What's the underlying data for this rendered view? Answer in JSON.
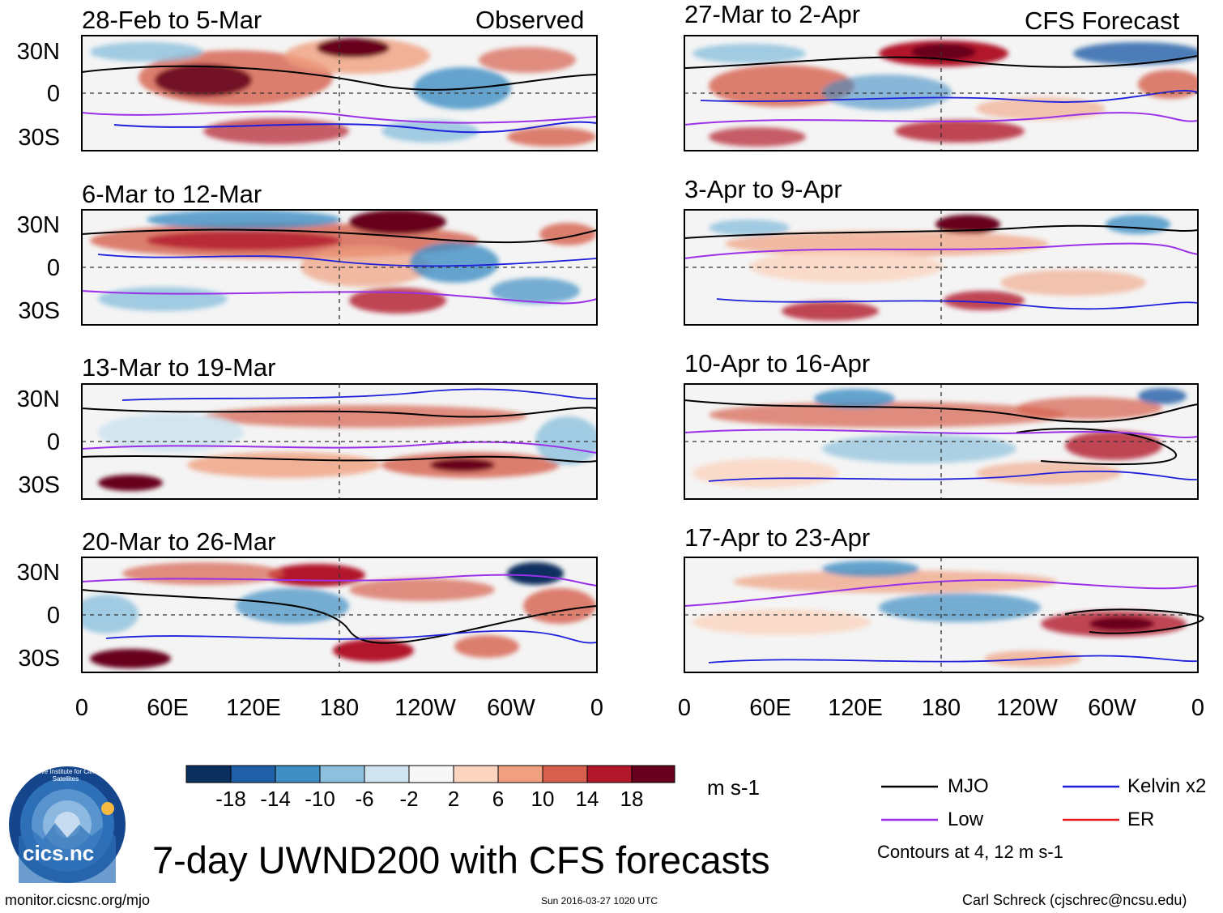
{
  "figure_title": "7-day UWND200 with CFS forecasts",
  "observed_label": "Observed",
  "forecast_label": "CFS Forecast",
  "observed_panels": [
    {
      "title": "28-Feb to 5-Mar"
    },
    {
      "title": "6-Mar to 12-Mar"
    },
    {
      "title": "13-Mar to 19-Mar"
    },
    {
      "title": "20-Mar to 26-Mar"
    }
  ],
  "forecast_panels": [
    {
      "title": "27-Mar to 2-Apr"
    },
    {
      "title": "3-Apr to 9-Apr"
    },
    {
      "title": "10-Apr to 16-Apr"
    },
    {
      "title": "17-Apr to 23-Apr"
    }
  ],
  "y_axis_labels": [
    "30N",
    "0",
    "30S"
  ],
  "x_axis_labels": [
    "0",
    "60E",
    "120E",
    "180",
    "120W",
    "60W",
    "0"
  ],
  "colorbar": {
    "unit": "m s-1",
    "ticks": [
      "-18",
      "-14",
      "-10",
      "-6",
      "-2",
      "2",
      "6",
      "10",
      "14",
      "18"
    ],
    "colors": [
      "#0b2f5e",
      "#1f5fa8",
      "#3f8ec4",
      "#8cc0dd",
      "#cfe4ef",
      "#f7f7f7",
      "#fbd5bf",
      "#f0a07f",
      "#d6604d",
      "#b2182b",
      "#67001f"
    ]
  },
  "legend": {
    "items": [
      {
        "label": "MJO",
        "color": "#000000"
      },
      {
        "label": "Kelvin x2",
        "color": "#1f1fdc"
      },
      {
        "label": "Low",
        "color": "#9a30e8"
      },
      {
        "label": "ER",
        "color": "#e51a1a"
      }
    ],
    "note": "Contours at 4, 12 m s-1"
  },
  "logo": {
    "name": "cics.nc",
    "ring_text": "Cooperative Institute for Climate and Satellites"
  },
  "footer": {
    "url": "monitor.cicsnc.org/mjo",
    "timestamp": "Sun 2016-03-27 1020 UTC",
    "author": "Carl Schreck (cjschrec@ncsu.edu)"
  }
}
